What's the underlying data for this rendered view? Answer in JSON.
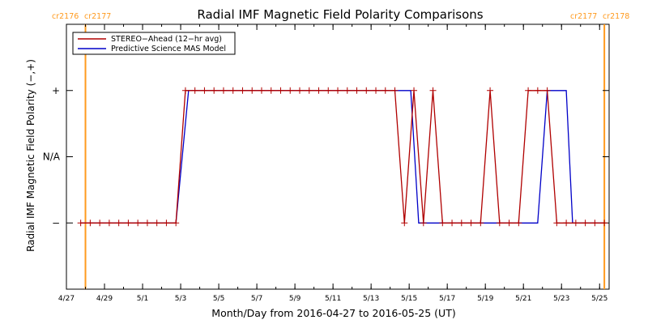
{
  "chart_data": {
    "type": "line",
    "title": "Radial IMF Magnetic Field Polarity Comparisons",
    "xlabel": "Month/Day from 2016-04-27 to 2016-05-25 (UT)",
    "ylabel": "Radial IMF Magnetic Field Polarity (−,+)",
    "x_unit": "date (2016, UT)",
    "xlim": [
      "2016-04-27T00:00",
      "2016-05-25T12:00"
    ],
    "x_ticks": [
      "4/27",
      "4/29",
      "5/1",
      "5/3",
      "5/5",
      "5/7",
      "5/9",
      "5/11",
      "5/13",
      "5/15",
      "5/17",
      "5/19",
      "5/21",
      "5/23",
      "5/25"
    ],
    "y_categories": [
      "−",
      "N/A",
      "+"
    ],
    "y_values": [
      -1,
      0,
      1
    ],
    "ylim": [
      -2,
      2
    ],
    "grid": false,
    "legend_position": "top-left",
    "carrington_markers": [
      {
        "date": "2016-04-28T00:00",
        "left_label": "cr2176",
        "right_label": "cr2177",
        "color": "#ff9a1e"
      },
      {
        "date": "2016-05-25T06:00",
        "left_label": "cr2177",
        "right_label": "cr2178",
        "color": "#ff9a1e"
      }
    ],
    "series": [
      {
        "name": "STEREO−Ahead (12−hr avg)",
        "color": "#b00000",
        "marker": "plus",
        "x": [
          "2016-04-27T18:00",
          "2016-04-28T06:00",
          "2016-04-28T18:00",
          "2016-04-29T06:00",
          "2016-04-29T18:00",
          "2016-04-30T06:00",
          "2016-04-30T18:00",
          "2016-05-01T06:00",
          "2016-05-01T18:00",
          "2016-05-02T06:00",
          "2016-05-02T18:00",
          "2016-05-03T06:00",
          "2016-05-03T18:00",
          "2016-05-04T06:00",
          "2016-05-04T18:00",
          "2016-05-05T06:00",
          "2016-05-05T18:00",
          "2016-05-06T06:00",
          "2016-05-06T18:00",
          "2016-05-07T06:00",
          "2016-05-07T18:00",
          "2016-05-08T06:00",
          "2016-05-08T18:00",
          "2016-05-09T06:00",
          "2016-05-09T18:00",
          "2016-05-10T06:00",
          "2016-05-10T18:00",
          "2016-05-11T06:00",
          "2016-05-11T18:00",
          "2016-05-12T06:00",
          "2016-05-12T18:00",
          "2016-05-13T06:00",
          "2016-05-13T18:00",
          "2016-05-14T06:00",
          "2016-05-14T18:00",
          "2016-05-15T06:00",
          "2016-05-15T18:00",
          "2016-05-16T06:00",
          "2016-05-16T18:00",
          "2016-05-17T06:00",
          "2016-05-17T18:00",
          "2016-05-18T06:00",
          "2016-05-18T18:00",
          "2016-05-19T06:00",
          "2016-05-19T18:00",
          "2016-05-20T06:00",
          "2016-05-20T18:00",
          "2016-05-21T06:00",
          "2016-05-21T18:00",
          "2016-05-22T06:00",
          "2016-05-22T18:00",
          "2016-05-23T06:00",
          "2016-05-23T18:00",
          "2016-05-24T06:00",
          "2016-05-24T18:00",
          "2016-05-25T06:00"
        ],
        "y": [
          -1,
          -1,
          -1,
          -1,
          -1,
          -1,
          -1,
          -1,
          -1,
          -1,
          -1,
          1,
          1,
          1,
          1,
          1,
          1,
          1,
          1,
          1,
          1,
          1,
          1,
          1,
          1,
          1,
          1,
          1,
          1,
          1,
          1,
          1,
          1,
          1,
          -1,
          1,
          -1,
          1,
          -1,
          -1,
          -1,
          -1,
          -1,
          1,
          -1,
          -1,
          -1,
          1,
          1,
          1,
          -1,
          -1,
          -1,
          -1,
          -1,
          -1
        ]
      },
      {
        "name": "Predictive Science MAS Model",
        "color": "#0000c8",
        "marker": "none",
        "x": [
          "2016-04-27T18:00",
          "2016-05-02T18:00",
          "2016-05-03T10:00",
          "2016-05-15T02:00",
          "2016-05-15T12:00",
          "2016-05-21T18:00",
          "2016-05-22T06:00",
          "2016-05-23T06:00",
          "2016-05-23T14:00",
          "2016-05-25T06:00"
        ],
        "y": [
          -1,
          -1,
          1,
          1,
          -1,
          -1,
          1,
          1,
          -1,
          -1
        ]
      }
    ]
  }
}
